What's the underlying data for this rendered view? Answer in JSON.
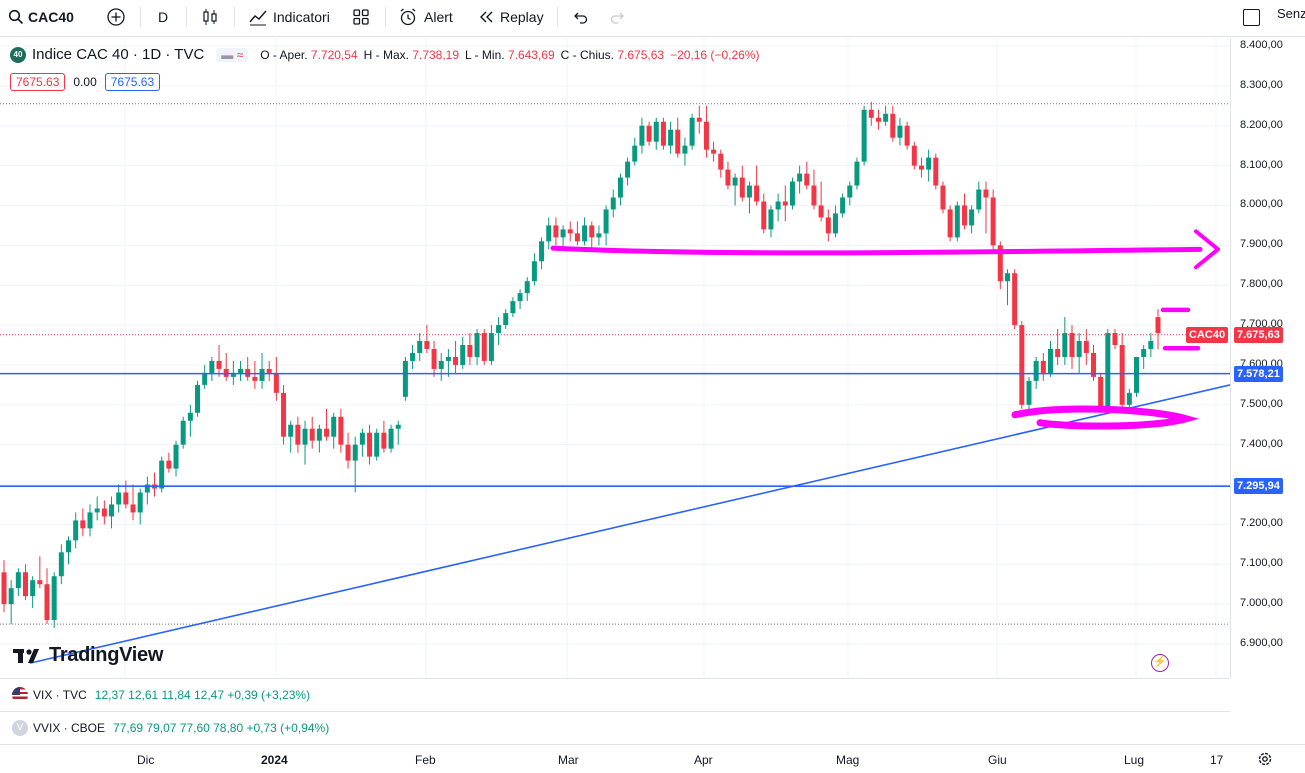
{
  "toolbar": {
    "symbol": "CAC40",
    "interval": "D",
    "indicators": "Indicatori",
    "alert": "Alert",
    "replay": "Replay",
    "right_text": "Senz"
  },
  "legend": {
    "badge": "40",
    "title": "Indice CAC 40 · 1D · TVC",
    "o_label": "O - Aper.",
    "o_value": "7.720,54",
    "h_label": "H - Max.",
    "h_value": "7.738,19",
    "l_label": "L - Min.",
    "l_value": "7.643,69",
    "c_label": "C - Chius.",
    "c_value": "7.675,63",
    "change": "−20,16 (−0,26%)",
    "box_left": "7675.63",
    "box_mid": "0.00",
    "box_right": "7675.63"
  },
  "price_scale": {
    "ticks": [
      "8.400,00",
      "8.300,00",
      "8.200,00",
      "8.100,00",
      "8.000,00",
      "7.900,00",
      "7.800,00",
      "7.700,00",
      "7.600,00",
      "7.500,00",
      "7.400,00",
      "7.300,00",
      "7.200,00",
      "7.100,00",
      "7.000,00",
      "6.900,00"
    ],
    "last_label": "CAC40",
    "last_value": "7.675,63",
    "line1_value": "7.578,21",
    "line2_value": "7.295,94"
  },
  "time_axis": [
    "Dic",
    "2024",
    "Feb",
    "Mar",
    "Apr",
    "Mag",
    "Giu",
    "Lug",
    "17"
  ],
  "watermark": "TradingView",
  "indicators": [
    {
      "name": "VIX · TVC",
      "values": "12,37  12,61  11,84  12,47  +0,39 (+3,23%)"
    },
    {
      "name": "VVIX · CBOE",
      "values": "77,69  79,07  77,60  78,80  +0,73 (+0,94%)"
    }
  ],
  "colors": {
    "up": "#089981",
    "down": "#f23645",
    "blue_line": "#2962ff",
    "marker": "#ff00ff"
  },
  "chart_data": {
    "type": "candlestick",
    "series": [
      {
        "name": "CAC40",
        "ohlc": [
          [
            7080,
            7110,
            6980,
            7000
          ],
          [
            7000,
            7060,
            6950,
            7040
          ],
          [
            7040,
            7090,
            7020,
            7080
          ],
          [
            7080,
            7100,
            7010,
            7020
          ],
          [
            7020,
            7070,
            6990,
            7060
          ],
          [
            7060,
            7120,
            7040,
            7050
          ],
          [
            7050,
            7090,
            6950,
            6960
          ],
          [
            6960,
            7080,
            6940,
            7070
          ],
          [
            7070,
            7150,
            7050,
            7130
          ],
          [
            7130,
            7170,
            7100,
            7160
          ],
          [
            7160,
            7230,
            7140,
            7210
          ],
          [
            7210,
            7240,
            7170,
            7190
          ],
          [
            7190,
            7250,
            7170,
            7230
          ],
          [
            7230,
            7270,
            7210,
            7240
          ],
          [
            7240,
            7260,
            7200,
            7220
          ],
          [
            7220,
            7270,
            7190,
            7250
          ],
          [
            7250,
            7300,
            7230,
            7280
          ],
          [
            7280,
            7310,
            7240,
            7250
          ],
          [
            7250,
            7300,
            7210,
            7230
          ],
          [
            7230,
            7290,
            7200,
            7280
          ],
          [
            7280,
            7320,
            7250,
            7300
          ],
          [
            7300,
            7330,
            7270,
            7290
          ],
          [
            7290,
            7370,
            7280,
            7360
          ],
          [
            7360,
            7380,
            7330,
            7340
          ],
          [
            7340,
            7410,
            7320,
            7400
          ],
          [
            7400,
            7470,
            7390,
            7460
          ],
          [
            7460,
            7500,
            7420,
            7480
          ],
          [
            7480,
            7560,
            7470,
            7550
          ],
          [
            7550,
            7600,
            7540,
            7580
          ],
          [
            7580,
            7620,
            7560,
            7610
          ],
          [
            7610,
            7650,
            7570,
            7590
          ],
          [
            7590,
            7630,
            7560,
            7570
          ],
          [
            7570,
            7610,
            7550,
            7580
          ],
          [
            7580,
            7610,
            7560,
            7590
          ],
          [
            7590,
            7620,
            7560,
            7570
          ],
          [
            7570,
            7610,
            7540,
            7560
          ],
          [
            7560,
            7630,
            7540,
            7590
          ],
          [
            7590,
            7610,
            7560,
            7580
          ],
          [
            7580,
            7620,
            7510,
            7530
          ],
          [
            7530,
            7550,
            7400,
            7420
          ],
          [
            7420,
            7460,
            7380,
            7450
          ],
          [
            7450,
            7470,
            7380,
            7400
          ],
          [
            7400,
            7460,
            7350,
            7440
          ],
          [
            7440,
            7470,
            7390,
            7410
          ],
          [
            7410,
            7450,
            7380,
            7440
          ],
          [
            7440,
            7490,
            7410,
            7420
          ],
          [
            7420,
            7480,
            7390,
            7470
          ],
          [
            7470,
            7490,
            7380,
            7400
          ],
          [
            7400,
            7430,
            7340,
            7360
          ],
          [
            7360,
            7420,
            7280,
            7400
          ],
          [
            7400,
            7440,
            7370,
            7430
          ],
          [
            7430,
            7450,
            7350,
            7370
          ],
          [
            7370,
            7440,
            7360,
            7430
          ],
          [
            7430,
            7460,
            7380,
            7390
          ],
          [
            7390,
            7450,
            7380,
            7440
          ],
          [
            7440,
            7460,
            7400,
            7450
          ],
          [
            7520,
            7620,
            7510,
            7610
          ],
          [
            7610,
            7650,
            7590,
            7630
          ],
          [
            7630,
            7680,
            7610,
            7660
          ],
          [
            7660,
            7700,
            7630,
            7640
          ],
          [
            7640,
            7660,
            7570,
            7590
          ],
          [
            7590,
            7630,
            7560,
            7610
          ],
          [
            7610,
            7640,
            7570,
            7620
          ],
          [
            7620,
            7660,
            7580,
            7600
          ],
          [
            7600,
            7670,
            7590,
            7650
          ],
          [
            7650,
            7680,
            7600,
            7620
          ],
          [
            7620,
            7690,
            7600,
            7680
          ],
          [
            7680,
            7690,
            7600,
            7610
          ],
          [
            7610,
            7700,
            7600,
            7680
          ],
          [
            7680,
            7720,
            7650,
            7700
          ],
          [
            7700,
            7740,
            7690,
            7730
          ],
          [
            7730,
            7770,
            7720,
            7760
          ],
          [
            7760,
            7790,
            7740,
            7780
          ],
          [
            7780,
            7820,
            7760,
            7810
          ],
          [
            7810,
            7880,
            7800,
            7860
          ],
          [
            7860,
            7920,
            7840,
            7910
          ],
          [
            7910,
            7970,
            7890,
            7950
          ],
          [
            7950,
            7970,
            7900,
            7920
          ],
          [
            7920,
            7950,
            7890,
            7940
          ],
          [
            7940,
            7960,
            7910,
            7930
          ],
          [
            7930,
            7960,
            7900,
            7910
          ],
          [
            7910,
            7970,
            7900,
            7950
          ],
          [
            7950,
            7960,
            7890,
            7920
          ],
          [
            7920,
            7950,
            7900,
            7930
          ],
          [
            7930,
            8000,
            7900,
            7990
          ],
          [
            7990,
            8040,
            7970,
            8020
          ],
          [
            8020,
            8080,
            8000,
            8070
          ],
          [
            8070,
            8120,
            8050,
            8110
          ],
          [
            8110,
            8170,
            8100,
            8150
          ],
          [
            8150,
            8220,
            8130,
            8200
          ],
          [
            8200,
            8210,
            8150,
            8160
          ],
          [
            8160,
            8220,
            8140,
            8210
          ],
          [
            8210,
            8220,
            8140,
            8150
          ],
          [
            8150,
            8210,
            8130,
            8190
          ],
          [
            8190,
            8220,
            8120,
            8130
          ],
          [
            8130,
            8170,
            8100,
            8150
          ],
          [
            8150,
            8230,
            8140,
            8220
          ],
          [
            8220,
            8250,
            8180,
            8210
          ],
          [
            8210,
            8250,
            8120,
            8140
          ],
          [
            8140,
            8160,
            8110,
            8130
          ],
          [
            8130,
            8140,
            8070,
            8090
          ],
          [
            8090,
            8110,
            8040,
            8050
          ],
          [
            8050,
            8080,
            8000,
            8070
          ],
          [
            8070,
            8100,
            8010,
            8020
          ],
          [
            8020,
            8060,
            7980,
            8050
          ],
          [
            8050,
            8100,
            8000,
            8010
          ],
          [
            8010,
            8030,
            7930,
            7940
          ],
          [
            7940,
            8000,
            7920,
            7990
          ],
          [
            7990,
            8030,
            7960,
            8010
          ],
          [
            8010,
            8050,
            7960,
            8000
          ],
          [
            8000,
            8070,
            7990,
            8060
          ],
          [
            8060,
            8100,
            8030,
            8080
          ],
          [
            8080,
            8110,
            8040,
            8050
          ],
          [
            8050,
            8090,
            7990,
            8000
          ],
          [
            8000,
            8060,
            7960,
            7970
          ],
          [
            7970,
            7990,
            7910,
            7930
          ],
          [
            7930,
            8000,
            7920,
            7980
          ],
          [
            7980,
            8030,
            7970,
            8020
          ],
          [
            8020,
            8060,
            8000,
            8050
          ],
          [
            8050,
            8120,
            8040,
            8110
          ],
          [
            8110,
            8250,
            8100,
            8240
          ],
          [
            8240,
            8260,
            8200,
            8220
          ],
          [
            8220,
            8240,
            8190,
            8210
          ],
          [
            8210,
            8250,
            8200,
            8230
          ],
          [
            8230,
            8250,
            8160,
            8170
          ],
          [
            8170,
            8220,
            8150,
            8200
          ],
          [
            8200,
            8210,
            8140,
            8150
          ],
          [
            8150,
            8160,
            8090,
            8100
          ],
          [
            8100,
            8120,
            8070,
            8090
          ],
          [
            8090,
            8140,
            8060,
            8120
          ],
          [
            8120,
            8130,
            8040,
            8050
          ],
          [
            8050,
            8060,
            7980,
            7990
          ],
          [
            7990,
            8000,
            7910,
            7920
          ],
          [
            7920,
            8010,
            7910,
            8000
          ],
          [
            8000,
            8030,
            7940,
            7950
          ],
          [
            7950,
            8000,
            7930,
            7990
          ],
          [
            7990,
            8060,
            7980,
            8040
          ],
          [
            8040,
            8060,
            7930,
            8020
          ],
          [
            8020,
            8040,
            7880,
            7900
          ],
          [
            7900,
            7910,
            7790,
            7810
          ],
          [
            7810,
            7840,
            7750,
            7830
          ],
          [
            7830,
            7840,
            7690,
            7700
          ],
          [
            7700,
            7710,
            7490,
            7500
          ],
          [
            7500,
            7570,
            7480,
            7560
          ],
          [
            7560,
            7620,
            7540,
            7610
          ],
          [
            7610,
            7630,
            7560,
            7580
          ],
          [
            7580,
            7660,
            7570,
            7640
          ],
          [
            7640,
            7690,
            7600,
            7620
          ],
          [
            7620,
            7720,
            7600,
            7680
          ],
          [
            7680,
            7700,
            7590,
            7620
          ],
          [
            7620,
            7680,
            7580,
            7660
          ],
          [
            7660,
            7690,
            7600,
            7630
          ],
          [
            7630,
            7650,
            7560,
            7570
          ],
          [
            7570,
            7580,
            7480,
            7490
          ],
          [
            7490,
            7690,
            7480,
            7680
          ],
          [
            7680,
            7690,
            7640,
            7650
          ],
          [
            7650,
            7680,
            7480,
            7500
          ],
          [
            7500,
            7540,
            7480,
            7530
          ],
          [
            7530,
            7620,
            7520,
            7620
          ],
          [
            7620,
            7650,
            7590,
            7640
          ],
          [
            7640,
            7680,
            7620,
            7660
          ],
          [
            7720,
            7740,
            7640,
            7680
          ]
        ]
      }
    ],
    "y_range": [
      6900,
      8400
    ],
    "x_labels": [
      "Dic",
      "2024",
      "Feb",
      "Mar",
      "Apr",
      "Mag",
      "Giu",
      "Lug",
      "17"
    ],
    "horizontal_lines": [
      7578.21,
      7295.94
    ],
    "last_price": 7675.63
  }
}
